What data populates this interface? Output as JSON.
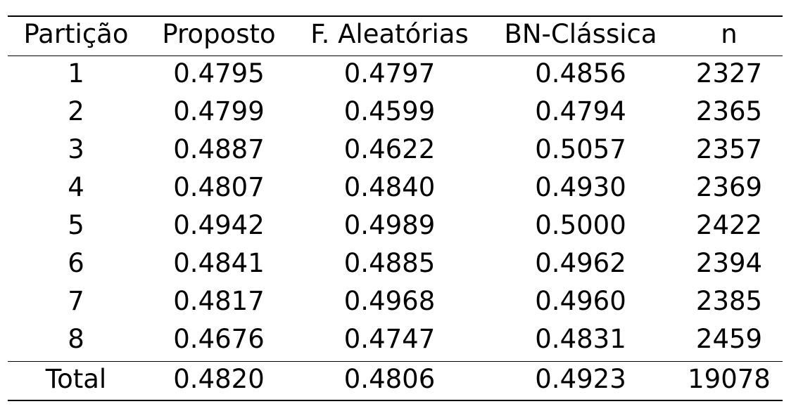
{
  "table": {
    "headers": [
      "Partição",
      "Proposto",
      "F. Aleatórias",
      "BN-Clássica",
      "n"
    ],
    "rows": [
      [
        "1",
        "0.4795",
        "0.4797",
        "0.4856",
        "2327"
      ],
      [
        "2",
        "0.4799",
        "0.4599",
        "0.4794",
        "2365"
      ],
      [
        "3",
        "0.4887",
        "0.4622",
        "0.5057",
        "2357"
      ],
      [
        "4",
        "0.4807",
        "0.4840",
        "0.4930",
        "2369"
      ],
      [
        "5",
        "0.4942",
        "0.4989",
        "0.5000",
        "2422"
      ],
      [
        "6",
        "0.4841",
        "0.4885",
        "0.4962",
        "2394"
      ],
      [
        "7",
        "0.4817",
        "0.4968",
        "0.4960",
        "2385"
      ],
      [
        "8",
        "0.4676",
        "0.4747",
        "0.4831",
        "2459"
      ]
    ],
    "total": [
      "Total",
      "0.4820",
      "0.4806",
      "0.4923",
      "19078"
    ]
  }
}
